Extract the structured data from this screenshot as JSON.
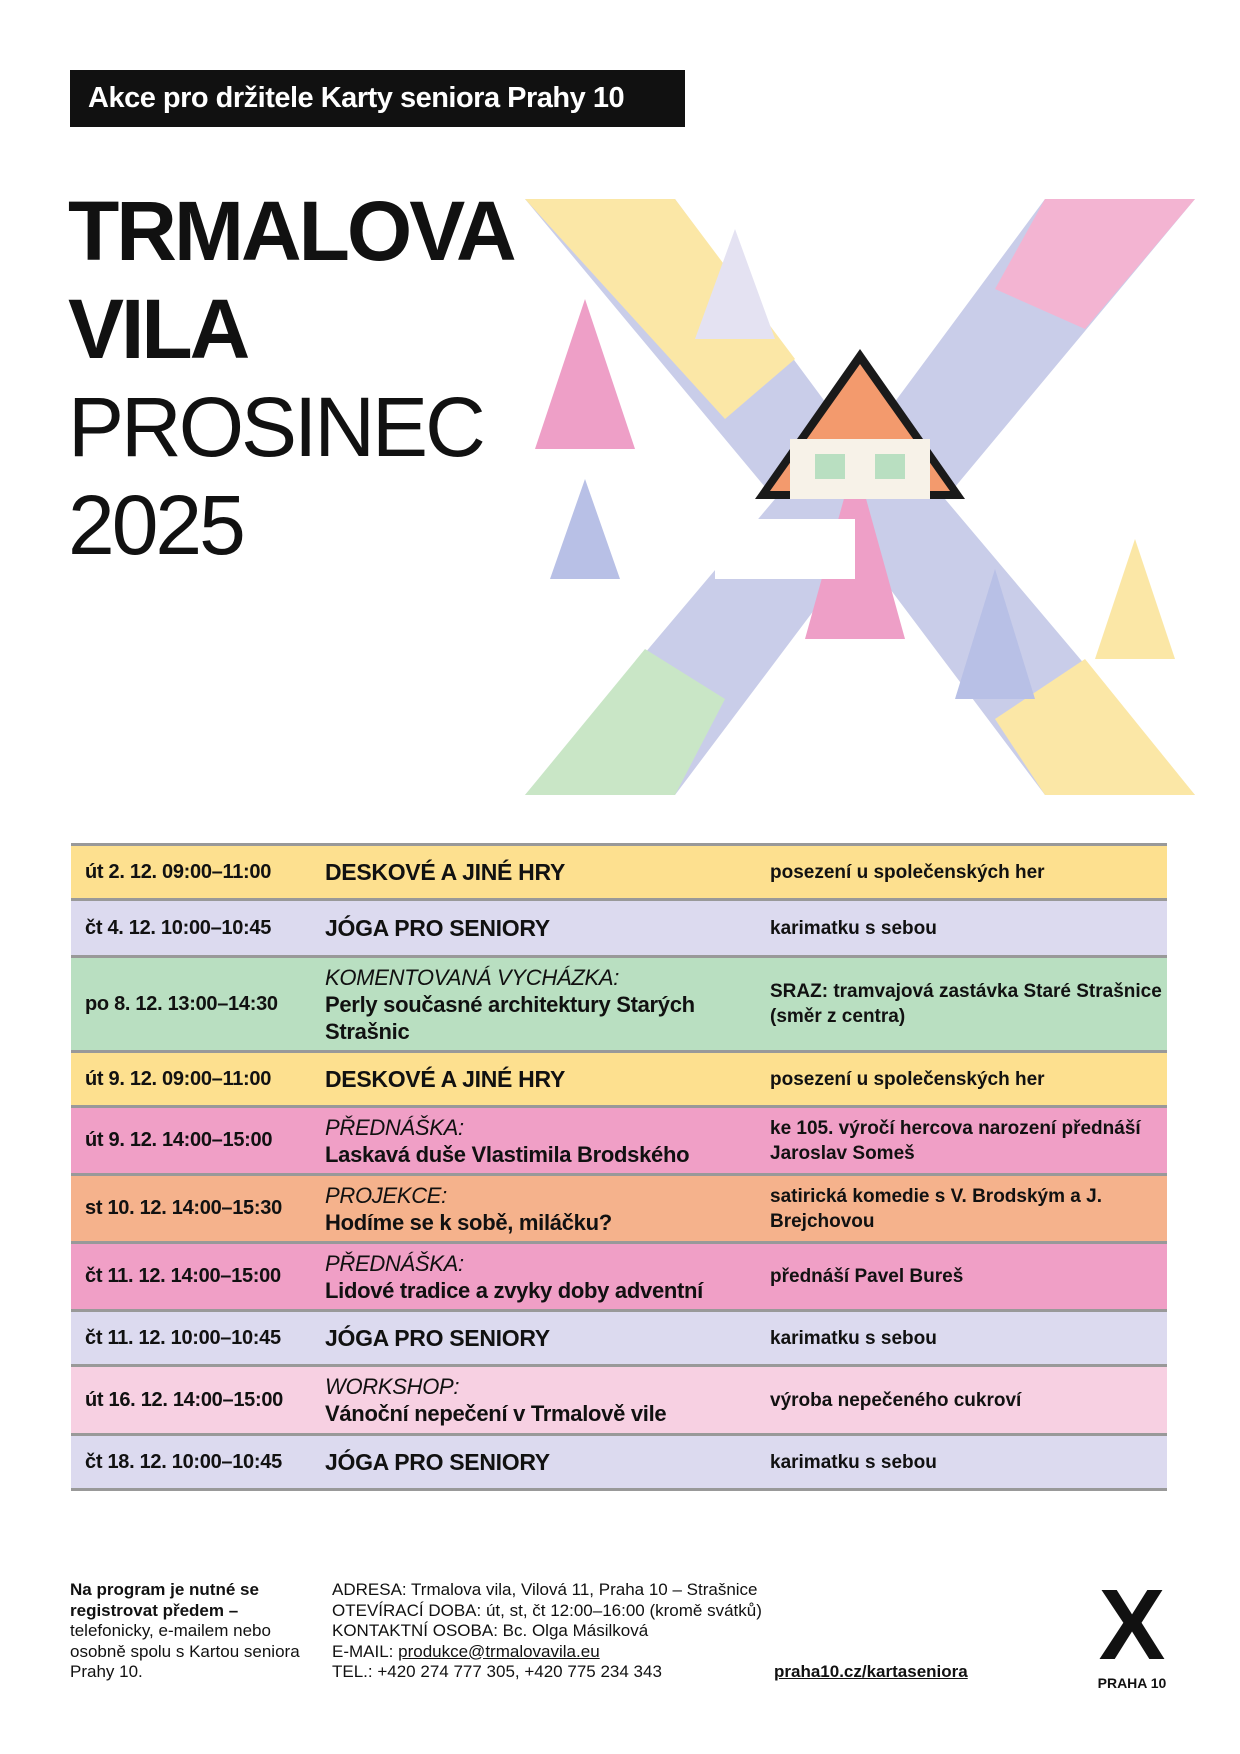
{
  "header": {
    "badge": "Akce pro držitele Karty seniora Prahy 10",
    "title_line1": "TRMALOVA",
    "title_line2": "VILA",
    "month": "PROSINEC",
    "year": "2025"
  },
  "colors": {
    "yellow": "#fde08f",
    "lavender": "#dcdaef",
    "green": "#b9dfc1",
    "pink": "#f09fc6",
    "orange": "#f5b28c",
    "lightpink": "#f7d0e2"
  },
  "events": [
    {
      "date": "út 2. 12. 09:00–11:00",
      "kind": "",
      "title": "DESKOVÉ A JINÉ HRY",
      "note": "posezení u společenských her",
      "color": "#fde08f"
    },
    {
      "date": "čt 4. 12. 10:00–10:45",
      "kind": "",
      "title": "JÓGA PRO SENIORY",
      "note": "karimatku s sebou",
      "color": "#dcdaef"
    },
    {
      "date": "po 8. 12. 13:00–14:30",
      "kind": "KOMENTOVANÁ VYCHÁZKA:",
      "title": "Perly současné architektury Starých Strašnic",
      "note": "SRAZ: tramvajová zastávka Staré Strašnice (směr z centra)",
      "color": "#b9dfc1"
    },
    {
      "date": "út 9. 12. 09:00–11:00",
      "kind": "",
      "title": "DESKOVÉ A JINÉ HRY",
      "note": "posezení u společenských her",
      "color": "#fde08f"
    },
    {
      "date": "út 9. 12. 14:00–15:00",
      "kind": "PŘEDNÁŠKA:",
      "title": "Laskavá duše Vlastimila Brodského",
      "note": "ke 105. výročí hercova narození přednáší Jaroslav Someš",
      "color": "#f09fc6"
    },
    {
      "date": "st 10. 12. 14:00–15:30",
      "kind": "PROJEKCE:",
      "title": "Hodíme se k sobě, miláčku?",
      "note": "satirická komedie s V. Brodským a J. Brejchovou",
      "color": "#f5b28c"
    },
    {
      "date": "čt 11. 12. 14:00–15:00",
      "kind": "PŘEDNÁŠKA:",
      "title": "Lidové tradice a zvyky doby adventní",
      "note": "přednáší Pavel Bureš",
      "color": "#f09fc6"
    },
    {
      "date": "čt 11. 12. 10:00–10:45",
      "kind": "",
      "title": "JÓGA PRO SENIORY",
      "note": "karimatku s sebou",
      "color": "#dcdaef"
    },
    {
      "date": "út 16. 12. 14:00–15:00",
      "kind": "WORKSHOP:",
      "title": "Vánoční nepečení v Trmalově vile",
      "note": "výroba nepečeného cukroví",
      "color": "#f7d0e2"
    },
    {
      "date": "čt 18. 12. 10:00–10:45",
      "kind": "",
      "title": "JÓGA PRO SENIORY",
      "note": "karimatku s sebou",
      "color": "#dcdaef"
    }
  ],
  "footer": {
    "reg_bold": "Na program je nutné se registrovat předem –",
    "reg_text": "telefonicky, e-mailem nebo osobně spolu s Kartou seniora Prahy 10.",
    "address": "ADRESA: Trmalova vila, Vilová 11, Praha 10 – Strašnice",
    "hours": "OTEVÍRACÍ DOBA: út, st, čt 12:00–16:00 (kromě svátků)",
    "contact": "KONTAKTNÍ OSOBA: Bc. Olga Másilková",
    "email_label": "E-MAIL: ",
    "email": "produkce@trmalovavila.eu",
    "tel": "TEL.: +420 274 777 305,  +420 775 234 343",
    "web": "praha10.cz/kartaseniora",
    "logo_mark": "X",
    "logo_text": "PRAHA 10"
  }
}
